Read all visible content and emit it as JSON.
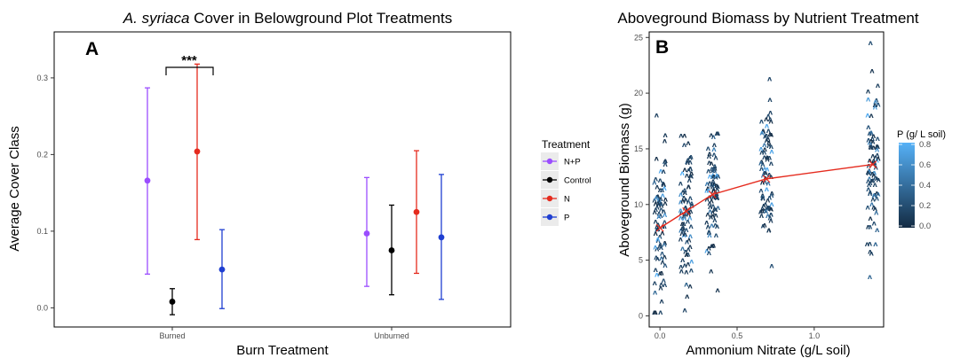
{
  "chart_data": [
    {
      "panel": "A",
      "type": "scatter",
      "title_italic": "A. syriaca",
      "title_rest": " Cover in Belowground Plot Treatments",
      "xlabel": "Burn Treatment",
      "ylabel": "Average Cover Class",
      "categories": [
        "Burned",
        "Unburned"
      ],
      "ylim": [
        -0.025,
        0.36
      ],
      "yticks": [
        0.0,
        0.1,
        0.2,
        0.3
      ],
      "ytick_labels": [
        "0.0",
        "0.1",
        "0.2",
        "0.3"
      ],
      "grid": false,
      "legend": {
        "title": "Treatment",
        "placement": "right"
      },
      "series": [
        {
          "name": "N+P",
          "color": "#9b4dff",
          "points": [
            {
              "category": "Burned",
              "mean": 0.166,
              "low": 0.044,
              "high": 0.287
            },
            {
              "category": "Unburned",
              "mean": 0.097,
              "low": 0.028,
              "high": 0.17
            }
          ]
        },
        {
          "name": "Control",
          "color": "#000000",
          "points": [
            {
              "category": "Burned",
              "mean": 0.008,
              "low": -0.009,
              "high": 0.025
            },
            {
              "category": "Unburned",
              "mean": 0.075,
              "low": 0.017,
              "high": 0.134
            }
          ]
        },
        {
          "name": "N",
          "color": "#e52b1e",
          "points": [
            {
              "category": "Burned",
              "mean": 0.204,
              "low": 0.089,
              "high": 0.318
            },
            {
              "category": "Unburned",
              "mean": 0.125,
              "low": 0.045,
              "high": 0.205
            }
          ]
        },
        {
          "name": "P",
          "color": "#1f3fd1",
          "points": [
            {
              "category": "Burned",
              "mean": 0.05,
              "low": -0.001,
              "high": 0.102
            },
            {
              "category": "Unburned",
              "mean": 0.092,
              "low": 0.011,
              "high": 0.174
            }
          ]
        }
      ],
      "annotations": [
        {
          "text": "***",
          "between": [
            "N+P",
            "N"
          ],
          "category": "Burned"
        }
      ]
    },
    {
      "panel": "B",
      "type": "scatter",
      "title": "Aboveground Biomass by Nutrient Treatment",
      "xlabel": "Ammonium Nitrate (g/L soil)",
      "ylabel": "Aboveground Biomass (g)",
      "xlim": [
        -0.07,
        1.45
      ],
      "ylim": [
        -1,
        25.5
      ],
      "xticks": [
        0.0,
        0.5,
        1.0
      ],
      "xtick_labels": [
        "0.0",
        "0.5",
        "1.0"
      ],
      "yticks": [
        0,
        5,
        10,
        15,
        20,
        25
      ],
      "ytick_labels": [
        "0",
        "5",
        "10",
        "15",
        "20",
        "25"
      ],
      "grid": false,
      "marker_glyph": "ʌ",
      "nitrate_levels": [
        0.0,
        0.17,
        0.34,
        0.69,
        1.38
      ],
      "group_ranges": [
        [
          0.3,
          18.0
        ],
        [
          0.5,
          16.2
        ],
        [
          2.3,
          16.4
        ],
        [
          4.5,
          21.3
        ],
        [
          3.5,
          24.5
        ]
      ],
      "fit_line": {
        "color": "#e52b1e",
        "x": [
          0.0,
          0.17,
          0.34,
          0.69,
          1.38
        ],
        "y": [
          7.9,
          9.4,
          10.9,
          12.3,
          13.6
        ]
      },
      "colorbar": {
        "title": "P (g/ L soil)",
        "range": [
          0.0,
          0.8
        ],
        "ticks": [
          "0.0",
          "0.2",
          "0.4",
          "0.6",
          "0.8"
        ],
        "low_color": "#132b43",
        "high_color": "#56b1f7",
        "placement": "right"
      }
    }
  ]
}
